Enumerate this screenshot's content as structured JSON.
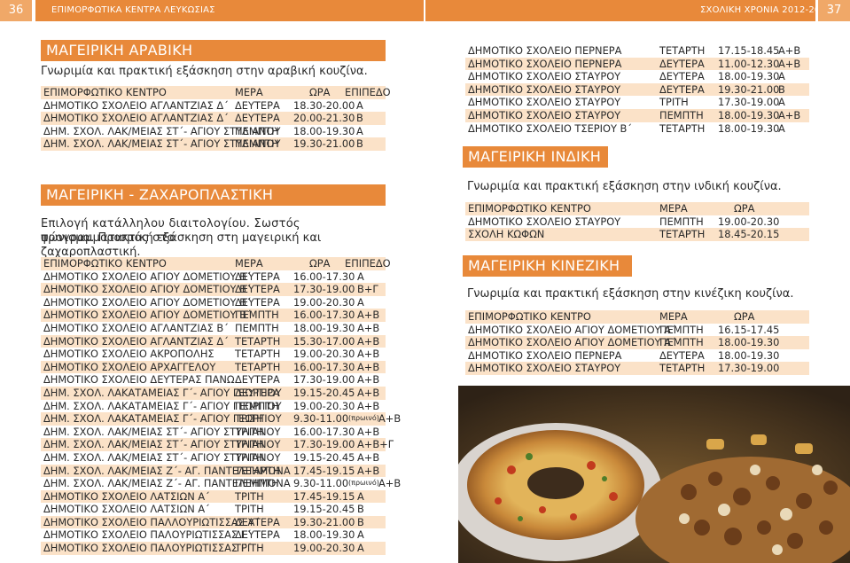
{
  "header": {
    "left_page_number": "36",
    "left_title": "ΕΠΙΜΟΡΦΩΤΙΚΑ ΚΕΝΤΡΑ ΛΕΥΚΩΣΙΑΣ",
    "right_title": "ΣΧΟΛΙΚΗ ΧΡΟΝΙΑ 2012-2013",
    "right_page_number": "37"
  },
  "colors": {
    "accent": "#e8893a",
    "row_tint": "#fbe2c8"
  },
  "arabic": {
    "title": "ΜΑΓΕΙΡΙΚΗ ΑΡΑΒΙΚΗ",
    "description": "Γνωριμία και πρακτική εξάσκηση στην αραβική κουζίνα.",
    "columns": [
      "ΕΠΙΜΟΡΦΩΤΙΚΟ ΚΕΝΤΡΟ",
      "ΜΕΡΑ",
      "ΩΡΑ",
      "ΕΠΙΠΕΔΟ"
    ],
    "rows": [
      [
        "ΔΗΜΟΤΙΚΟ ΣΧΟΛΕΙΟ ΑΓΛΑΝΤΖΙΑΣ Δ΄",
        "ΔΕΥΤΕΡΑ",
        "18.30-20.00",
        "Α"
      ],
      [
        "ΔΗΜΟΤΙΚΟ ΣΧΟΛΕΙΟ ΑΓΛΑΝΤΖΙΑΣ Δ΄",
        "ΔΕΥΤΕΡΑ",
        "20.00-21.30",
        "Β"
      ],
      [
        "ΔΗΜ. ΣΧΟΛ. ΛΑΚ/ΜΕΙΑΣ ΣΤ΄- ΑΓΙΟΥ ΣΤΥΛΙΑΝΟΥ",
        "ΠΕΜΠΤΗ",
        "18.00-19.30",
        "Α"
      ],
      [
        "ΔΗΜ. ΣΧΟΛ. ΛΑΚ/ΜΕΙΑΣ ΣΤ΄- ΑΓΙΟΥ ΣΤΥΛΙΑΝΟΥ",
        "ΠΕΜΠΤΗ",
        "19.30-21.00",
        "Β"
      ]
    ]
  },
  "pastry": {
    "title": "ΜΑΓΕΙΡΙΚΗ - ΖΑΧΑΡΟΠΛΑΣΤΙΚΗ",
    "description_line1": "Επιλογή κατάλληλου διαιτολογίου. Σωστός προγραμματισμός στο",
    "description_line2": "ψώνισμα. Πρακτική εξάσκηση στη μαγειρική και ζαχαροπλαστική.",
    "columns": [
      "ΕΠΙΜΟΡΦΩΤΙΚΟ ΚΕΝΤΡΟ",
      "ΜΕΡΑ",
      "ΩΡΑ",
      "ΕΠΙΠΕΔΟ"
    ],
    "rows": [
      [
        "ΔΗΜΟΤΙΚΟ ΣΧΟΛΕΙΟ ΑΓΙΟΥ ΔΟΜΕΤΙΟΥ Β΄",
        "ΔΕΥΤΕΡΑ",
        "16.00-17.30",
        "",
        "Α"
      ],
      [
        "ΔΗΜΟΤΙΚΟ ΣΧΟΛΕΙΟ ΑΓΙΟΥ ΔΟΜΕΤΙΟΥ Β΄",
        "ΔΕΥΤΕΡΑ",
        "17.30-19.00",
        "",
        "Β+Γ"
      ],
      [
        "ΔΗΜΟΤΙΚΟ ΣΧΟΛΕΙΟ ΑΓΙΟΥ ΔΟΜΕΤΙΟΥ Β΄",
        "ΔΕΥΤΕΡΑ",
        "19.00-20.30",
        "",
        "Α"
      ],
      [
        "ΔΗΜΟΤΙΚΟ ΣΧΟΛΕΙΟ ΑΓΙΟΥ ΔΟΜΕΤΙΟΥ Β΄",
        "ΠΕΜΠΤΗ",
        "16.00-17.30",
        "",
        "Α+Β"
      ],
      [
        "ΔΗΜΟΤΙΚΟ ΣΧΟΛΕΙΟ ΑΓΛΑΝΤΖΙΑΣ Β΄",
        "ΠΕΜΠΤΗ",
        "18.00-19.30",
        "",
        "Α+Β"
      ],
      [
        "ΔΗΜΟΤΙΚΟ ΣΧΟΛΕΙΟ ΑΓΛΑΝΤΖΙΑΣ Δ΄",
        "ΤΕΤΑΡΤΗ",
        "15.30-17.00",
        "",
        "Α+Β"
      ],
      [
        "ΔΗΜΟΤΙΚΟ ΣΧΟΛΕΙΟ ΑΚΡΟΠΟΛΗΣ",
        "ΤΕΤΑΡΤΗ",
        "19.00-20.30",
        "",
        "Α+Β"
      ],
      [
        "ΔΗΜΟΤΙΚΟ ΣΧΟΛΕΙΟ ΑΡΧΑΓΓΕΛΟΥ",
        "ΤΕΤΑΡΤΗ",
        "16.00-17.30",
        "",
        "Α+Β"
      ],
      [
        "ΔΗΜΟΤΙΚΟ ΣΧΟΛΕΙΟ ΔΕΥΤΕΡΑΣ ΠΑΝΩ",
        "ΔΕΥΤΕΡΑ",
        "17.30-19.00",
        "",
        "Α+Β"
      ],
      [
        "ΔΗΜ. ΣΧΟΛ. ΛΑΚΑΤΑΜΕΙΑΣ Γ΄- ΑΓΙΟΥ ΓΕΩΡΓΙΟΥ",
        "ΔΕΥΤΕΡΑ",
        "19.15-20.45",
        "",
        "Α+Β"
      ],
      [
        "ΔΗΜ. ΣΧΟΛ. ΛΑΚΑΤΑΜΕΙΑΣ Γ΄- ΑΓΙΟΥ ΓΕΩΡΓΙΟΥ",
        "ΠΕΜΠΤΗ",
        "19.00-20.30",
        "",
        "Α+Β"
      ],
      [
        "ΔΗΜ. ΣΧΟΛ. ΛΑΚΑΤΑΜΕΙΑΣ Γ΄- ΑΓΙΟΥ ΓΕΩΡΓΙΟΥ",
        "ΤΡΙΤΗ",
        "9.30-11.00",
        "(πρωινό)",
        "Α+Β"
      ],
      [
        "ΔΗΜ. ΣΧΟΛ. ΛΑΚ/ΜΕΙΑΣ ΣΤ΄- ΑΓΙΟΥ ΣΤΥΛΙΑΝΟΥ",
        "ΤΡΙΤΗ",
        "16.00-17.30",
        "",
        "Α+Β"
      ],
      [
        "ΔΗΜ. ΣΧΟΛ. ΛΑΚ/ΜΕΙΑΣ ΣΤ΄- ΑΓΙΟΥ ΣΤΥΛΙΑΝΟΥ",
        "ΤΡΙΤΗ",
        "17.30-19.00",
        "",
        "Α+Β+Γ"
      ],
      [
        "ΔΗΜ. ΣΧΟΛ. ΛΑΚ/ΜΕΙΑΣ ΣΤ΄- ΑΓΙΟΥ ΣΤΥΛΙΑΝΟΥ",
        "ΤΡΙΤΗ",
        "19.15-20.45",
        "",
        "Α+Β"
      ],
      [
        "ΔΗΜ. ΣΧΟΛ. ΛΑΚ/ΜΕΙΑΣ Ζ΄- ΑΓ. ΠΑΝΤΕΛΕΗΜΟΝΑ",
        "ΤΕΤΑΡΤΗ",
        "17.45-19.15",
        "",
        "Α+Β"
      ],
      [
        "ΔΗΜ. ΣΧΟΛ. ΛΑΚ/ΜΕΙΑΣ Ζ΄- ΑΓ. ΠΑΝΤΕΛΕΗΜΟΝΑ",
        "ΠΕΜΠΤΗ",
        "9.30-11.00",
        "(πρωινό)",
        "Α+Β"
      ],
      [
        "ΔΗΜΟΤΙΚΟ ΣΧΟΛΕΙΟ ΛΑΤΣΙΩΝ Α΄",
        "ΤΡΙΤΗ",
        "17.45-19.15",
        "",
        "Α"
      ],
      [
        "ΔΗΜΟΤΙΚΟ ΣΧΟΛΕΙΟ ΛΑΤΣΙΩΝ Α΄",
        "ΤΡΙΤΗ",
        "19.15-20.45",
        "",
        "Β"
      ],
      [
        "ΔΗΜΟΤΙΚΟ ΣΧΟΛΕΙΟ ΠΑΛΛΟΥΡΙΩΤΙΣΣΑΣ Α΄",
        "ΔΕΥΤΕΡΑ",
        "19.30-21.00",
        "",
        "Β"
      ],
      [
        "ΔΗΜΟΤΙΚΟ ΣΧΟΛΕΙΟ ΠΑΛΟΥΡΙΩΤΙΣΣΑΣ Γ΄",
        "ΔΕΥΤΕΡΑ",
        "18.00-19.30",
        "",
        "Α"
      ],
      [
        "ΔΗΜΟΤΙΚΟ ΣΧΟΛΕΙΟ ΠΑΛΟΥΡΙΩΤΙΣΣΑΣ Γ΄",
        "ΤΡΙΤΗ",
        "19.00-20.30",
        "",
        "Α"
      ]
    ]
  },
  "pastry_continued": {
    "rows": [
      [
        "ΔΗΜΟΤΙΚΟ ΣΧΟΛΕΙΟ ΠΕΡΝΕΡΑ",
        "ΤΕΤΑΡΤΗ",
        "17.15-18.45",
        "Α+Β"
      ],
      [
        "ΔΗΜΟΤΙΚΟ ΣΧΟΛΕΙΟ ΠΕΡΝΕΡΑ",
        "ΔΕΥΤΕΡΑ",
        "11.00-12.30",
        "Α+Β"
      ],
      [
        "ΔΗΜΟΤΙΚΟ ΣΧΟΛΕΙΟ ΣΤΑΥΡΟΥ",
        "ΔΕΥΤΕΡΑ",
        "18.00-19.30",
        "Α"
      ],
      [
        "ΔΗΜΟΤΙΚΟ ΣΧΟΛΕΙΟ ΣΤΑΥΡΟΥ",
        "ΔΕΥΤΕΡΑ",
        "19.30-21.00",
        "Β"
      ],
      [
        "ΔΗΜΟΤΙΚΟ ΣΧΟΛΕΙΟ ΣΤΑΥΡΟΥ",
        "ΤΡΙΤΗ",
        "17.30-19.00",
        "Α"
      ],
      [
        "ΔΗΜΟΤΙΚΟ ΣΧΟΛΕΙΟ ΣΤΑΥΡΟΥ",
        "ΠΕΜΠΤΗ",
        "18.00-19.30",
        "Α+Β"
      ],
      [
        "ΔΗΜΟΤΙΚΟ ΣΧΟΛΕΙΟ ΤΣΕΡΙΟΥ Β΄",
        "ΤΕΤΑΡΤΗ",
        "18.00-19.30",
        "Α"
      ]
    ]
  },
  "indian": {
    "title": "ΜΑΓΕΙΡΙΚΗ ΙΝΔΙΚΗ",
    "description": "Γνωριμία και πρακτική εξάσκηση στην ινδική κουζίνα.",
    "columns": [
      "ΕΠΙΜΟΡΦΩΤΙΚΟ ΚΕΝΤΡΟ",
      "ΜΕΡΑ",
      "ΩΡΑ"
    ],
    "rows": [
      [
        "ΔΗΜΟΤΙΚΟ ΣΧΟΛΕΙΟ ΣΤΑΥΡΟΥ",
        "ΠΕΜΠΤΗ",
        "19.00-20.30"
      ],
      [
        "ΣΧΟΛΗ ΚΩΦΩΝ",
        "ΤΕΤΑΡΤΗ",
        "18.45-20.15"
      ]
    ]
  },
  "chinese": {
    "title": "ΜΑΓΕΙΡΙΚΗ ΚΙΝΕΖΙΚΗ",
    "description": "Γνωριμία και πρακτική εξάσκηση στην κινέζικη κουζίνα.",
    "columns": [
      "ΕΠΙΜΟΡΦΩΤΙΚΟ ΚΕΝΤΡΟ",
      "ΜΕΡΑ",
      "ΩΡΑ"
    ],
    "rows": [
      [
        "ΔΗΜΟΤΙΚΟ ΣΧΟΛΕΙΟ ΑΓΙΟΥ ΔΟΜΕΤΙΟΥ Α΄",
        "ΠΕΜΠΤΗ",
        "16.15-17.45"
      ],
      [
        "ΔΗΜΟΤΙΚΟ ΣΧΟΛΕΙΟ ΑΓΙΟΥ ΔΟΜΕΤΙΟΥ Α΄",
        "ΠΕΜΠΤΗ",
        "18.00-19.30"
      ],
      [
        "ΔΗΜΟΤΙΚΟ ΣΧΟΛΕΙΟ ΠΕΡΝΕΡΑ",
        "ΔΕΥΤΕΡΑ",
        "18.00-19.30"
      ],
      [
        "ΔΗΜΟΤΙΚΟ ΣΧΟΛΕΙΟ ΣΤΑΥΡΟΥ",
        "ΤΕΤΑΡΤΗ",
        "17.30-19.00"
      ]
    ]
  }
}
